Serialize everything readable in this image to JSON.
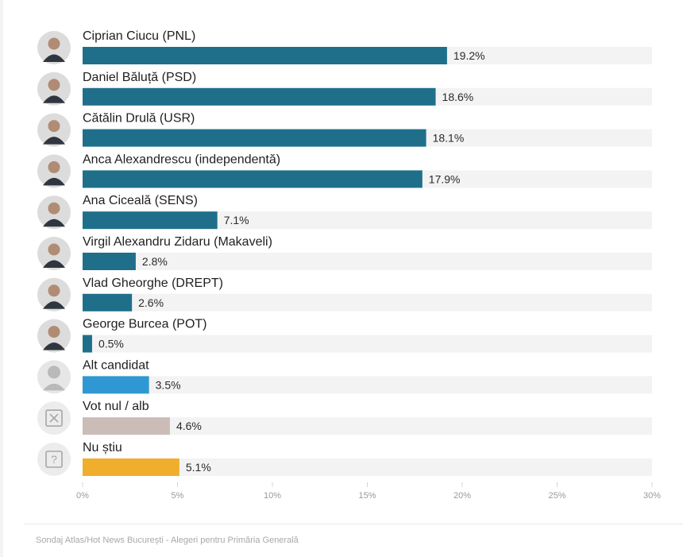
{
  "colors": {
    "party_bar": "#1f6f8b",
    "other_bar": "#2f98d2",
    "null_bar": "#cbbcb8",
    "unknown_bar": "#efae2c",
    "track": "#f3f3f3",
    "grid": "#d4d4d4"
  },
  "footer": {
    "source": "Sondaj Atlas/Hot News București - Alegeri pentru Primăria Generală"
  },
  "chart_data": {
    "type": "bar",
    "orientation": "horizontal",
    "categories": [
      "Ciprian Ciucu (PNL)",
      "Daniel Băluță (PSD)",
      "Cătălin Drulă (USR)",
      "Anca Alexandrescu (independentă)",
      "Ana Ciceală (SENS)",
      "Virgil Alexandru Zidaru (Makaveli)",
      "Vlad Gheorghe (DREPT)",
      "George Burcea (POT)",
      "Alt candidat",
      "Vot nul / alb",
      "Nu știu"
    ],
    "values": [
      19.2,
      18.6,
      18.1,
      17.9,
      7.1,
      2.8,
      2.6,
      0.5,
      3.5,
      4.6,
      5.1
    ],
    "value_labels": [
      "19.2%",
      "18.6%",
      "18.1%",
      "17.9%",
      "7.1%",
      "2.8%",
      "2.6%",
      "0.5%",
      "3.5%",
      "4.6%",
      "5.1%"
    ],
    "bar_color_keys": [
      "party_bar",
      "party_bar",
      "party_bar",
      "party_bar",
      "party_bar",
      "party_bar",
      "party_bar",
      "party_bar",
      "other_bar",
      "null_bar",
      "unknown_bar"
    ],
    "icons": [
      "candidate-photo-icon",
      "candidate-photo-icon",
      "candidate-photo-icon",
      "candidate-photo-icon",
      "candidate-photo-icon",
      "candidate-photo-icon",
      "candidate-photo-icon",
      "candidate-photo-icon",
      "person-silhouette-icon",
      "x-box-icon",
      "question-box-icon"
    ],
    "xlim": [
      0,
      30
    ],
    "x_ticks": [
      0,
      5,
      10,
      15,
      20,
      25,
      30
    ],
    "x_tick_labels": [
      "0%",
      "5%",
      "10%",
      "15%",
      "20%",
      "25%",
      "30%"
    ],
    "grid": true,
    "title": "",
    "xlabel": "",
    "ylabel": ""
  }
}
